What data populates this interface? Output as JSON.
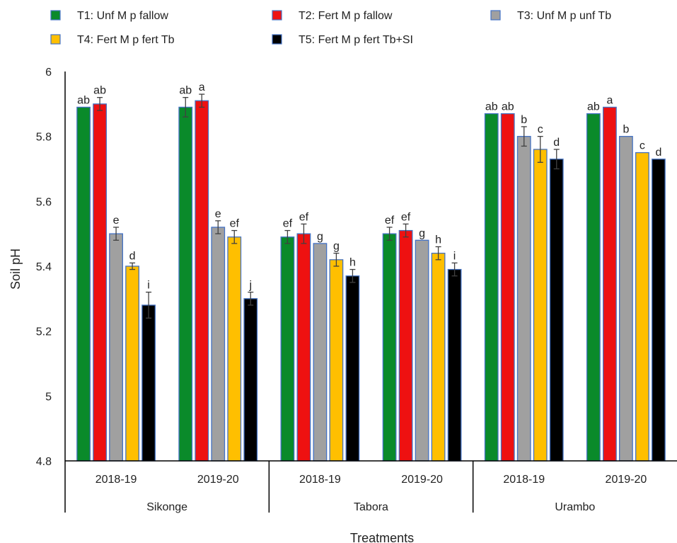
{
  "chart_data": {
    "type": "bar",
    "ylabel": "Soil pH",
    "xlabel": "Treatments",
    "ylim": [
      4.8,
      6.0
    ],
    "yticks": [
      4.8,
      5,
      5.2,
      5.4,
      5.6,
      5.8,
      6
    ],
    "ytick_labels": [
      "4.8",
      "5",
      "5.2",
      "5.4",
      "5.6",
      "5.8",
      "6"
    ],
    "grid": false,
    "legend_position": "top",
    "groups": [
      {
        "site": "Sikonge",
        "seasons": [
          "2018-19",
          "2019-20"
        ]
      },
      {
        "site": "Tabora",
        "seasons": [
          "2018-19",
          "2019-20"
        ]
      },
      {
        "site": "Urambo",
        "seasons": [
          "2018-19",
          "2019-20"
        ]
      }
    ],
    "categories": [
      "Sikonge 2018-19",
      "Sikonge 2019-20",
      "Tabora 2018-19",
      "Tabora 2019-20",
      "Urambo 2018-19",
      "Urambo 2019-20"
    ],
    "series": [
      {
        "name": "T1: Unf M p fallow",
        "color": "#0a8a2a",
        "values": [
          5.89,
          5.89,
          5.49,
          5.5,
          5.87,
          5.87
        ],
        "errors": [
          0.0,
          0.03,
          0.02,
          0.02,
          0.0,
          0.0
        ],
        "letters": [
          "ab",
          "ab",
          "ef",
          "ef",
          "ab",
          "ab"
        ]
      },
      {
        "name": "T2: Fert M p fallow",
        "color": "#ee1111",
        "values": [
          5.9,
          5.91,
          5.5,
          5.51,
          5.87,
          5.89
        ],
        "errors": [
          0.02,
          0.02,
          0.03,
          0.02,
          0.0,
          0.0
        ],
        "letters": [
          "ab",
          "a",
          "ef",
          "ef",
          "ab",
          "a"
        ]
      },
      {
        "name": "T3: Unf M p unf Tb",
        "color": "#a0a0a0",
        "values": [
          5.5,
          5.52,
          5.47,
          5.48,
          5.8,
          5.8
        ],
        "errors": [
          0.02,
          0.02,
          0.0,
          0.0,
          0.03,
          0.0
        ],
        "letters": [
          "e",
          "e",
          "g",
          "g",
          "b",
          "b"
        ]
      },
      {
        "name": "T4: Fert M p fert Tb",
        "color": "#ffbf00",
        "values": [
          5.4,
          5.49,
          5.42,
          5.44,
          5.76,
          5.75
        ],
        "errors": [
          0.01,
          0.02,
          0.02,
          0.02,
          0.04,
          0.0
        ],
        "letters": [
          "d",
          "ef",
          "g",
          "h",
          "c",
          "c"
        ]
      },
      {
        "name": "T5: Fert M p fert Tb+SI",
        "color": "#000000",
        "values": [
          5.28,
          5.3,
          5.37,
          5.39,
          5.73,
          5.73
        ],
        "errors": [
          0.04,
          0.02,
          0.02,
          0.02,
          0.03,
          0.0
        ],
        "letters": [
          "i",
          "j",
          "h",
          "i",
          "d",
          "d"
        ]
      }
    ],
    "colors": {
      "bar_outline": "#4472c4",
      "error_bar": "#404040",
      "axis": "#000000",
      "text": "#222222"
    }
  }
}
